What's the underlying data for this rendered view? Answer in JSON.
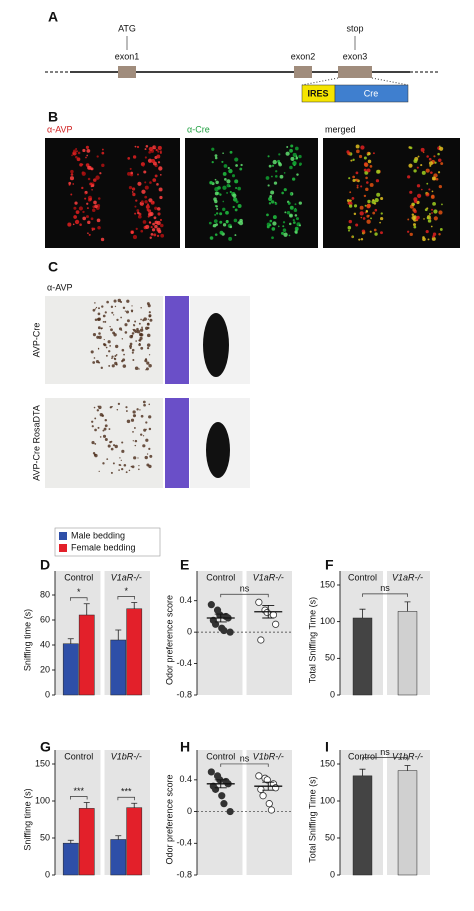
{
  "figure": {
    "panel_labels": [
      "A",
      "B",
      "C",
      "D",
      "E",
      "F",
      "G",
      "H",
      "I"
    ],
    "gene": {
      "atg": "ATG",
      "exon1": "exon1",
      "exon2": "exon2",
      "stop": "stop",
      "exon3": "exon3",
      "ires": "IRES",
      "cre": "Cre"
    },
    "stains": [
      "α-AVP",
      "α-Cre",
      "merged"
    ],
    "c_stain": "α-AVP",
    "c_rows": [
      "AVP-Cre",
      "AVP-Cre RosaDTA"
    ]
  },
  "chart_data": [
    {
      "type": "bar",
      "ylabel": "Sniffing time (s)",
      "categories": [
        "Control",
        "V1aR-/-"
      ],
      "ylim": [
        0,
        88
      ],
      "yticks": [
        0,
        20,
        40,
        60,
        80
      ],
      "series": [
        {
          "name": "Male bedding",
          "color": "#2e4fa8",
          "values": [
            41,
            44
          ],
          "errors": [
            4,
            8
          ]
        },
        {
          "name": "Female bedding",
          "color": "#e3202a",
          "values": [
            64,
            69
          ],
          "errors": [
            9,
            5
          ]
        }
      ],
      "significance": [
        "*",
        "*"
      ]
    },
    {
      "type": "dot",
      "ylabel": "Odor preference score",
      "categories": [
        "Control",
        "V1aR-/-"
      ],
      "ylim": [
        -0.8,
        0.6
      ],
      "yticks": [
        -0.8,
        -0.4,
        0,
        0.4
      ],
      "refline": 0,
      "points": [
        [
          0.35,
          0.28,
          0.22,
          0.2,
          0.18,
          0.15,
          0.1,
          0.05,
          0.02,
          0
        ],
        [
          0.38,
          0.28,
          0.25,
          0.22,
          0.1,
          -0.1
        ]
      ],
      "means": [
        0.18,
        0.26
      ],
      "sems": [
        0.05,
        0.08
      ],
      "marker_fill": [
        "#333333",
        "#ffffff"
      ],
      "significance": "ns"
    },
    {
      "type": "bar",
      "ylabel": "Total Sniffing Time (s)",
      "categories": [
        "Control",
        "V1aR-/-"
      ],
      "ylim": [
        0,
        150
      ],
      "yticks": [
        0,
        50,
        100,
        150
      ],
      "colors": [
        "#444444",
        "#d0d0d0"
      ],
      "series": [
        {
          "values": [
            105,
            114
          ],
          "errors": [
            12,
            13
          ]
        }
      ],
      "significance": "ns"
    },
    {
      "type": "bar",
      "ylabel": "Sniffing time (s)",
      "categories": [
        "Control",
        "V1bR-/-"
      ],
      "ylim": [
        0,
        150
      ],
      "yticks": [
        0,
        50,
        100,
        150
      ],
      "series": [
        {
          "name": "Male bedding",
          "color": "#2e4fa8",
          "values": [
            43,
            48
          ],
          "errors": [
            4,
            5
          ]
        },
        {
          "name": "Female bedding",
          "color": "#e3202a",
          "values": [
            90,
            91
          ],
          "errors": [
            8,
            6
          ]
        }
      ],
      "significance": [
        "***",
        "***"
      ]
    },
    {
      "type": "dot",
      "ylabel": "Odor preference score",
      "categories": [
        "Control",
        "V1bR-/-"
      ],
      "ylim": [
        -0.8,
        0.6
      ],
      "yticks": [
        -0.8,
        -0.4,
        0,
        0.4
      ],
      "refline": 0,
      "points": [
        [
          0.5,
          0.45,
          0.4,
          0.38,
          0.35,
          0.32,
          0.28,
          0.2,
          0.1,
          0
        ],
        [
          0.45,
          0.42,
          0.4,
          0.35,
          0.3,
          0.28,
          0.2,
          0.1,
          0.02
        ]
      ],
      "means": [
        0.35,
        0.32
      ],
      "sems": [
        0.05,
        0.05
      ],
      "marker_fill": [
        "#333333",
        "#ffffff"
      ],
      "significance": "ns"
    },
    {
      "type": "bar",
      "ylabel": "Total Sniffing Time (s)",
      "categories": [
        "Control",
        "V1bR-/-"
      ],
      "ylim": [
        0,
        150
      ],
      "yticks": [
        0,
        50,
        100,
        150
      ],
      "colors": [
        "#444444",
        "#d0d0d0"
      ],
      "series": [
        {
          "values": [
            134,
            141
          ],
          "errors": [
            9,
            7
          ]
        }
      ],
      "significance": "ns"
    }
  ]
}
